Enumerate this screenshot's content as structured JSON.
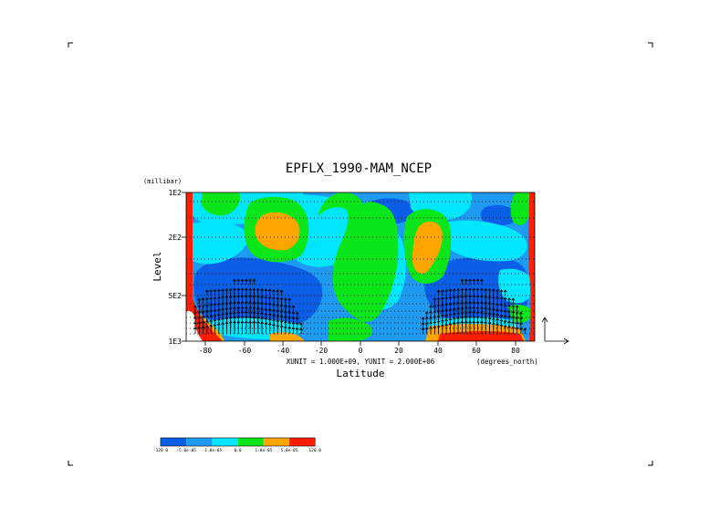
{
  "chart_data": {
    "type": "heatmap",
    "title": "EPFLX_1990-MAM_NCEP",
    "xlabel": "Latitude",
    "ylabel": "Level",
    "x_units": "(degrees_north)",
    "y_units": "(millibar)",
    "x_ticks": [
      "-80",
      "-60",
      "-40",
      "-20",
      "0",
      "20",
      "40",
      "60",
      "80"
    ],
    "y_ticks": [
      "1E2",
      "2E2",
      "5E2",
      "1E3"
    ],
    "xlim": [
      -90,
      90
    ],
    "ylim_mb": [
      1000,
      100
    ],
    "y_scale": "log",
    "vector_units": "XUNIT = 1.000E+09, YUNIT = 2.000E+06",
    "colorbar": {
      "labels": [
        "-120.0",
        "-5.0e-05",
        "-1.0e-05",
        "0.0",
        "1.0e-05",
        "5.0e-05",
        "120.0"
      ],
      "colors": [
        "#0a5fe6",
        "#1e9bf0",
        "#00e6ff",
        "#0ae619",
        "#ffa500",
        "#ff1e00"
      ]
    }
  }
}
